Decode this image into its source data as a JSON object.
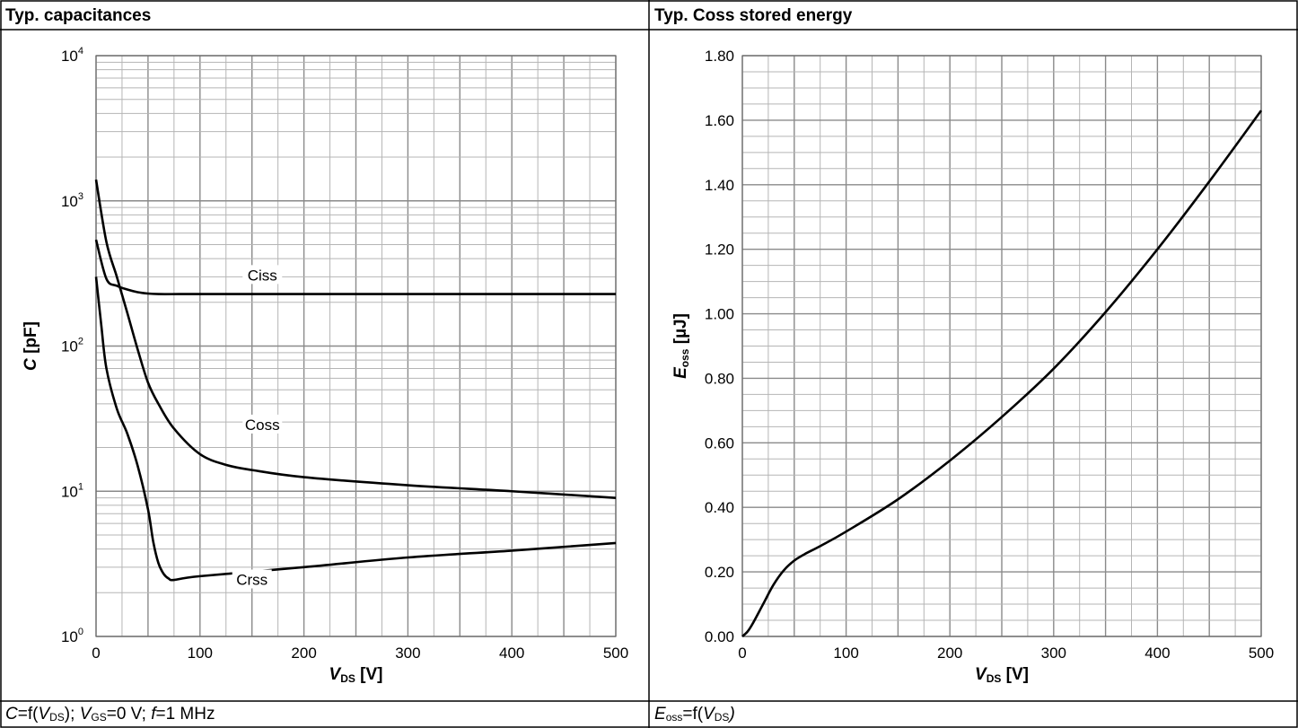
{
  "panels": {
    "left_title": "Typ. capacitances",
    "right_title": "Typ. Coss stored energy",
    "left_caption": {
      "c": "C",
      "eq": "=f(",
      "v": "V",
      "ds": "DS",
      "close": ");",
      "v2": "V",
      "gs": "GS",
      "gs_val": "=0 V;",
      "f": "f",
      "f_val": "=1 MHz"
    },
    "right_caption": {
      "e": "E",
      "oss": "oss",
      "eq": "=f(",
      "v": "V",
      "ds": "DS",
      "close": ")"
    }
  },
  "chart_data": [
    {
      "type": "line",
      "title": "Typ. capacitances",
      "xlabel": "VDS [V]",
      "ylabel": "C [pF]",
      "xlim": [
        0,
        500
      ],
      "ylim": [
        1,
        10000
      ],
      "yscale": "log",
      "grid": true,
      "x_ticks": [
        "0",
        "100",
        "200",
        "300",
        "400",
        "500"
      ],
      "y_ticks": [
        {
          "base": "10",
          "exp": "0"
        },
        {
          "base": "10",
          "exp": "1"
        },
        {
          "base": "10",
          "exp": "2"
        },
        {
          "base": "10",
          "exp": "3"
        },
        {
          "base": "10",
          "exp": "4"
        }
      ],
      "series": [
        {
          "name": "Ciss",
          "label_at": [
            160,
            300
          ],
          "x": [
            0,
            10,
            20,
            30,
            40,
            50,
            60,
            80,
            100,
            200,
            300,
            400,
            500
          ],
          "y": [
            540,
            290,
            260,
            245,
            235,
            230,
            228,
            228,
            228,
            228,
            228,
            228,
            228
          ]
        },
        {
          "name": "Coss",
          "label_at": [
            160,
            28
          ],
          "x": [
            0,
            10,
            20,
            30,
            40,
            50,
            60,
            75,
            100,
            125,
            150,
            200,
            300,
            400,
            500
          ],
          "y": [
            1400,
            520,
            300,
            170,
            95,
            56,
            40,
            27,
            18,
            15.2,
            14,
            12.5,
            11,
            10,
            9
          ]
        },
        {
          "name": "Crss",
          "label_at": [
            150,
            2.4
          ],
          "x": [
            0,
            5,
            10,
            20,
            30,
            40,
            50,
            55,
            60,
            65,
            70,
            75,
            100,
            200,
            300,
            400,
            500
          ],
          "y": [
            300,
            140,
            70,
            37,
            25,
            15,
            7.5,
            4.5,
            3.2,
            2.7,
            2.5,
            2.45,
            2.6,
            3.0,
            3.5,
            3.9,
            4.4
          ]
        }
      ]
    },
    {
      "type": "line",
      "title": "Typ. Coss stored energy",
      "xlabel": "VDS [V]",
      "ylabel": "Eoss [µJ]",
      "xlim": [
        0,
        500
      ],
      "ylim": [
        0,
        1.8
      ],
      "grid": true,
      "x_ticks": [
        "0",
        "100",
        "200",
        "300",
        "400",
        "500"
      ],
      "y_ticks": [
        "0.00",
        "0.20",
        "0.40",
        "0.60",
        "0.80",
        "1.00",
        "1.20",
        "1.40",
        "1.60",
        "1.80"
      ],
      "series": [
        {
          "x": [
            0,
            5,
            10,
            20,
            30,
            40,
            50,
            60,
            75,
            100,
            150,
            200,
            250,
            300,
            350,
            400,
            450,
            500
          ],
          "y": [
            0,
            0.015,
            0.04,
            0.1,
            0.16,
            0.205,
            0.235,
            0.255,
            0.28,
            0.325,
            0.425,
            0.545,
            0.68,
            0.83,
            1.005,
            1.2,
            1.41,
            1.63
          ]
        }
      ]
    }
  ]
}
